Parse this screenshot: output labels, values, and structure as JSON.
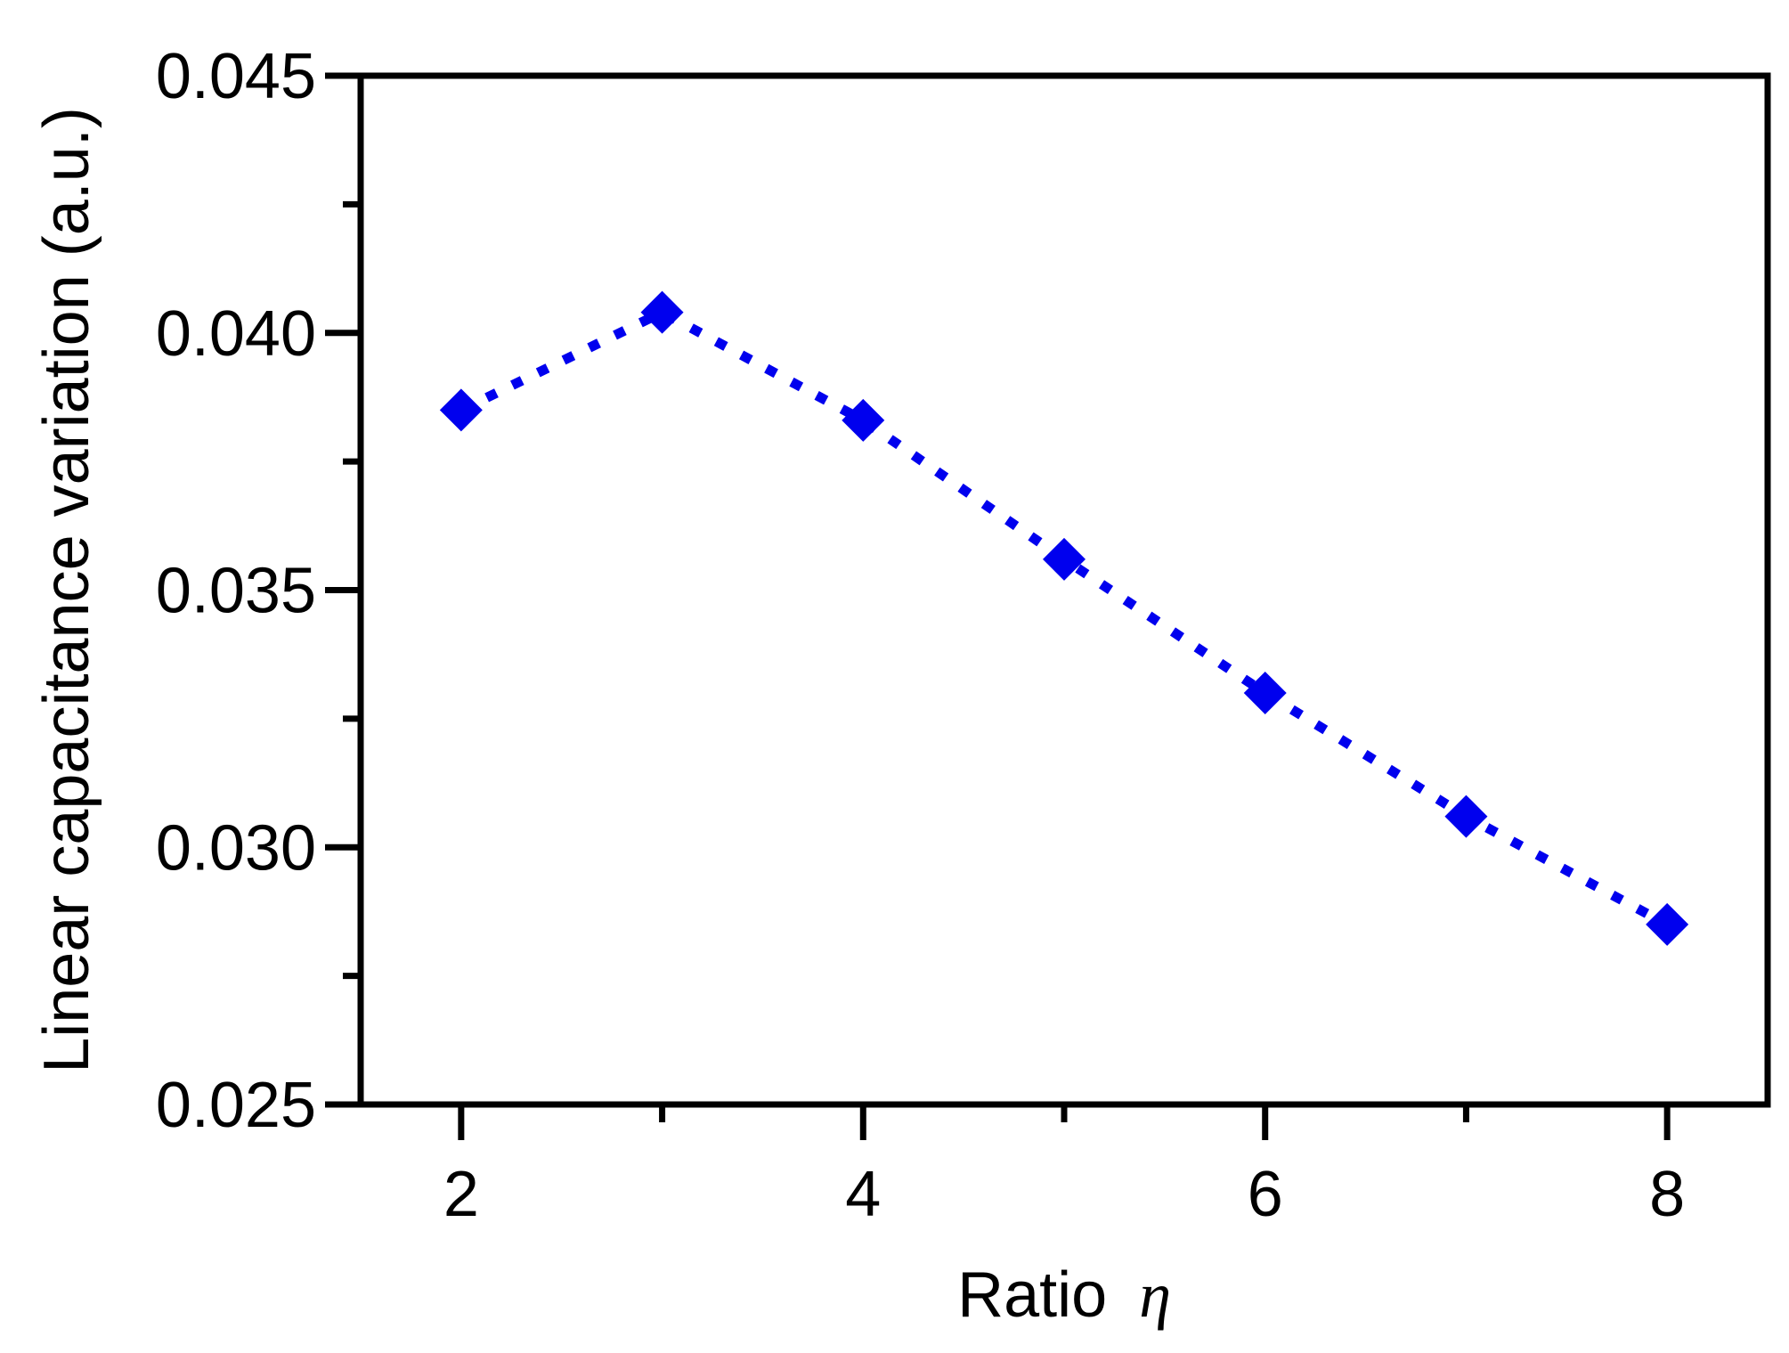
{
  "chart_data": {
    "type": "scatter",
    "title": "",
    "xlabel": "Ratio",
    "xlabel_symbol": "η",
    "ylabel": "Linear capacitance variation (a.u.)",
    "xlim": [
      1.5,
      8.5
    ],
    "ylim": [
      0.025,
      0.045
    ],
    "x_ticks": [
      2,
      3,
      4,
      5,
      6,
      7,
      8
    ],
    "x_tick_labels": [
      "2",
      "4",
      "6",
      "8"
    ],
    "x_tick_label_values": [
      2,
      4,
      6,
      8
    ],
    "y_ticks": [
      0.025,
      0.0275,
      0.03,
      0.0325,
      0.035,
      0.0375,
      0.04,
      0.0425,
      0.045
    ],
    "y_tick_labels": [
      "0.025",
      "0.030",
      "0.035",
      "0.040",
      "0.045"
    ],
    "y_tick_label_values": [
      0.025,
      0.03,
      0.035,
      0.04,
      0.045
    ],
    "grid": false,
    "legend": "none",
    "series": [
      {
        "marker": "diamond",
        "line_style": "dotted",
        "color": "#0000ee",
        "x": [
          2,
          3,
          4,
          5,
          6,
          7,
          8
        ],
        "y": [
          0.0385,
          0.0404,
          0.0383,
          0.0356,
          0.033,
          0.0306,
          0.0285
        ]
      }
    ]
  }
}
